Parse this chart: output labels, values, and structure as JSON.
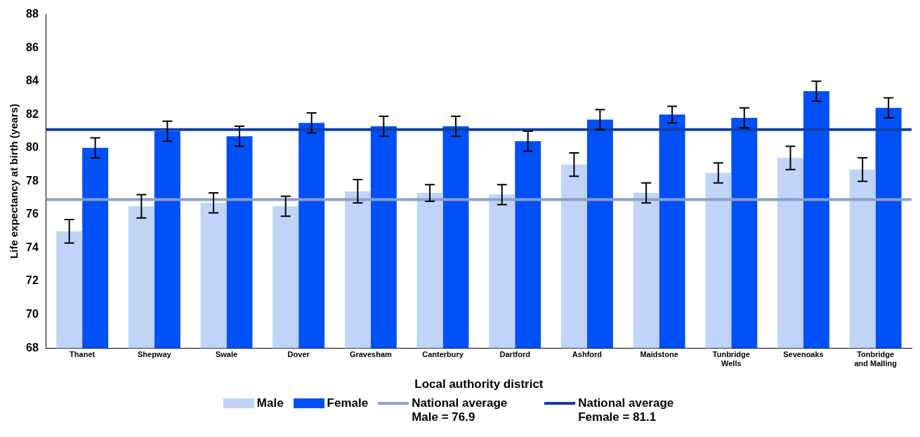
{
  "chart_data": {
    "type": "bar",
    "xlabel": "Local authority district",
    "ylabel": "Life expectancy at birth (years)",
    "categories": [
      "Thanet",
      "Shepway",
      "Swale",
      "Dover",
      "Gravesham",
      "Canterbury",
      "Dartford",
      "Ashford",
      "Maidstone",
      "Tunbridge Wells",
      "Sevenoaks",
      "Tonbridge and Malling"
    ],
    "series": [
      {
        "name": "Male",
        "color": "#c0d4f8",
        "values": [
          75.0,
          76.5,
          76.7,
          76.5,
          77.4,
          77.3,
          77.2,
          79.0,
          77.3,
          78.5,
          79.4,
          78.7
        ],
        "errors": [
          0.7,
          0.7,
          0.6,
          0.6,
          0.7,
          0.5,
          0.6,
          0.7,
          0.6,
          0.6,
          0.7,
          0.7
        ]
      },
      {
        "name": "Female",
        "color": "#0050f8",
        "values": [
          80.0,
          81.0,
          80.7,
          81.5,
          81.3,
          81.3,
          80.4,
          81.7,
          82.0,
          81.8,
          83.4,
          82.4
        ],
        "errors": [
          0.6,
          0.6,
          0.6,
          0.6,
          0.6,
          0.6,
          0.6,
          0.6,
          0.5,
          0.6,
          0.6,
          0.6
        ]
      }
    ],
    "ref_lines": [
      {
        "axis": "y",
        "value": 76.9,
        "label": "National average Male = 76.9",
        "color": "#8ca0c8"
      },
      {
        "axis": "y",
        "value": 81.1,
        "label": "National average Female = 81.1",
        "color": "#1040a0"
      }
    ],
    "ylim": [
      68,
      88
    ],
    "yticks": [
      68,
      70,
      72,
      74,
      76,
      78,
      80,
      82,
      84,
      86,
      88
    ],
    "grid": false,
    "legend": "bottom"
  }
}
